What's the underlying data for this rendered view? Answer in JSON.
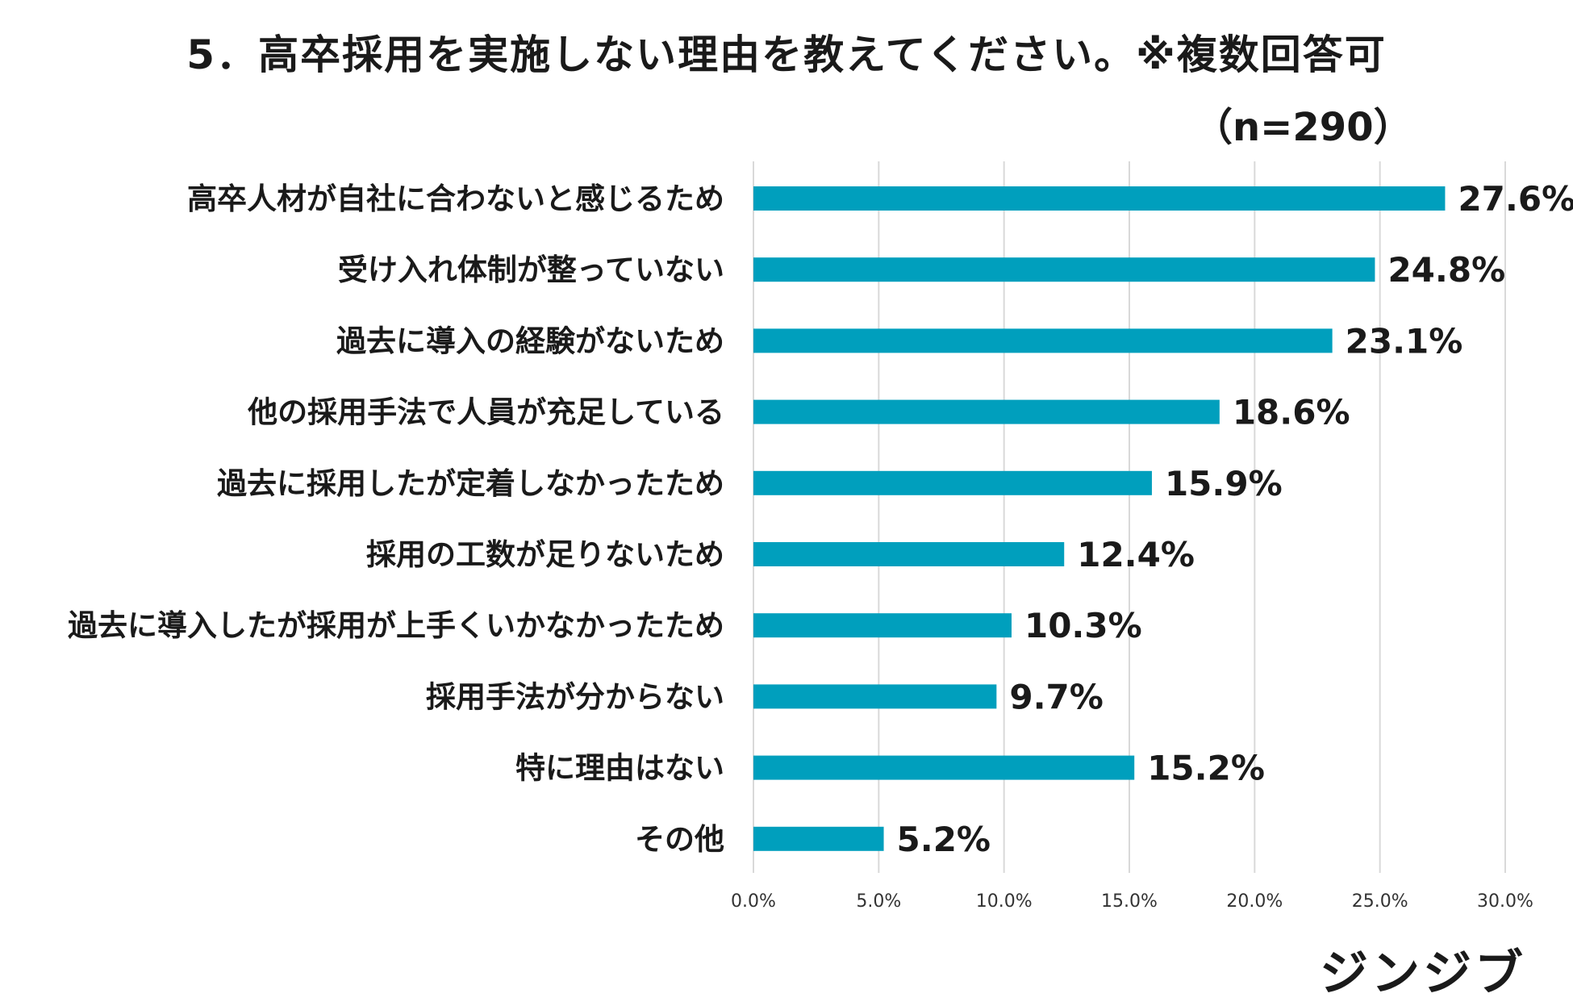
{
  "brand": {
    "name": "ジンジブ",
    "bar_color": "#009fbd",
    "grid_color": "#d9d9d9"
  },
  "chart_data": {
    "type": "bar",
    "orientation": "horizontal",
    "title": "5．高卒採用を実施しない理由を教えてください。※複数回答可",
    "subtitle": "（n=290）",
    "categories": [
      "高卒人材が自社に合わないと感じるため",
      "受け入れ体制が整っていない",
      "過去に導入の経験がないため",
      "他の採用手法で人員が充足している",
      "過去に採用したが定着しなかったため",
      "採用の工数が足りないため",
      "過去に導入したが採用が上手くいかなかったため",
      "採用手法が分からない",
      "特に理由はない",
      "その他"
    ],
    "values": [
      27.6,
      24.8,
      23.1,
      18.6,
      15.9,
      12.4,
      10.3,
      9.7,
      15.2,
      5.2
    ],
    "value_labels": [
      "27.6%",
      "24.8%",
      "23.1%",
      "18.6%",
      "15.9%",
      "12.4%",
      "10.3%",
      "9.7%",
      "15.2%",
      "5.2%"
    ],
    "xlim": [
      0,
      30
    ],
    "x_ticks": [
      0,
      5,
      10,
      15,
      20,
      25,
      30
    ],
    "x_tick_labels": [
      "0.0%",
      "5.0%",
      "10.0%",
      "15.0%",
      "20.0%",
      "25.0%",
      "30.0%"
    ],
    "grid": true,
    "legend": "none"
  }
}
